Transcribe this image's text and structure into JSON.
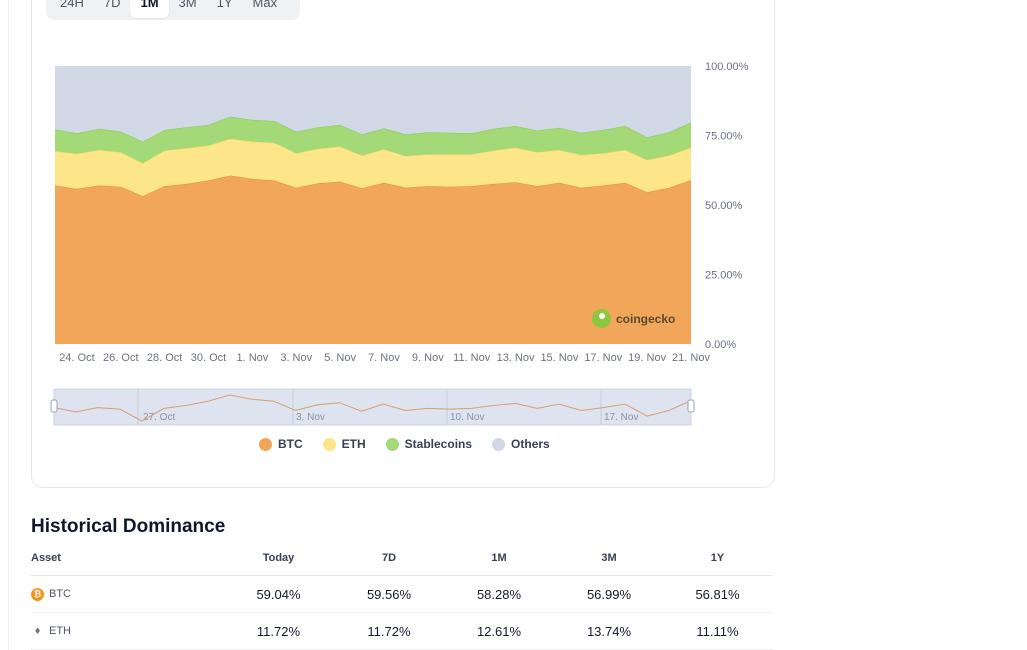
{
  "tabs": [
    {
      "label": "24H",
      "active": false
    },
    {
      "label": "7D",
      "active": false
    },
    {
      "label": "1M",
      "active": true
    },
    {
      "label": "3M",
      "active": false
    },
    {
      "label": "1Y",
      "active": false
    },
    {
      "label": "Max",
      "active": false
    }
  ],
  "watermark": "coingecko",
  "legend": [
    {
      "label": "BTC",
      "color": "#f2a65a"
    },
    {
      "label": "ETH",
      "color": "#fde68a"
    },
    {
      "label": "Stablecoins",
      "color": "#a3d977"
    },
    {
      "label": "Others",
      "color": "#d1d9e6"
    }
  ],
  "chart_data": {
    "type": "area",
    "stacked": true,
    "ylim": [
      0,
      100
    ],
    "y_ticks": [
      "100.00%",
      "75.00%",
      "50.00%",
      "25.00%",
      "0.00%"
    ],
    "x_tick_labels": [
      "24. Oct",
      "26. Oct",
      "28. Oct",
      "30. Oct",
      "1. Nov",
      "3. Nov",
      "5. Nov",
      "7. Nov",
      "9. Nov",
      "11. Nov",
      "13. Nov",
      "15. Nov",
      "17. Nov",
      "19. Nov",
      "21. Nov"
    ],
    "x": [
      "23. Oct",
      "24. Oct",
      "25. Oct",
      "26. Oct",
      "27. Oct",
      "28. Oct",
      "29. Oct",
      "30. Oct",
      "31. Oct",
      "1. Nov",
      "2. Nov",
      "3. Nov",
      "4. Nov",
      "5. Nov",
      "6. Nov",
      "7. Nov",
      "8. Nov",
      "9. Nov",
      "10. Nov",
      "11. Nov",
      "12. Nov",
      "13. Nov",
      "14. Nov",
      "15. Nov",
      "16. Nov",
      "17. Nov",
      "18. Nov",
      "19. Nov",
      "20. Nov",
      "21. Nov"
    ],
    "series": [
      {
        "name": "BTC",
        "color": "#f2a65a",
        "values": [
          57.0,
          55.8,
          57.0,
          56.6,
          53.2,
          56.8,
          57.6,
          58.8,
          60.6,
          59.4,
          58.8,
          56.2,
          57.8,
          58.4,
          56.0,
          58.0,
          56.2,
          56.8,
          56.6,
          56.8,
          57.6,
          58.2,
          56.8,
          58.0,
          56.2,
          57.0,
          58.0,
          54.6,
          56.2,
          59.0
        ]
      },
      {
        "name": "ETH",
        "color": "#fde68a",
        "values": [
          12.4,
          12.6,
          12.8,
          12.4,
          11.8,
          12.8,
          12.8,
          12.6,
          13.2,
          13.4,
          13.6,
          12.4,
          12.4,
          12.6,
          11.8,
          12.0,
          11.4,
          11.4,
          11.6,
          11.4,
          12.0,
          12.4,
          12.2,
          11.8,
          11.8,
          11.6,
          11.8,
          11.6,
          11.6,
          11.7
        ]
      },
      {
        "name": "Stablecoins",
        "color": "#a3d977",
        "values": [
          7.8,
          7.4,
          7.6,
          7.4,
          7.8,
          7.4,
          7.6,
          7.4,
          8.0,
          7.8,
          7.8,
          7.8,
          7.8,
          7.8,
          7.6,
          7.6,
          7.8,
          8.0,
          7.8,
          7.6,
          7.8,
          7.8,
          7.8,
          8.0,
          8.0,
          8.4,
          8.6,
          8.2,
          8.4,
          9.1
        ]
      },
      {
        "name": "Others",
        "color": "#d1d9e6",
        "values": [
          22.8,
          24.2,
          22.6,
          23.6,
          27.2,
          23.0,
          22.0,
          21.2,
          18.2,
          19.4,
          19.8,
          23.6,
          22.0,
          21.2,
          24.6,
          22.4,
          24.6,
          23.8,
          24.0,
          24.2,
          22.6,
          21.6,
          23.2,
          22.2,
          24.0,
          23.0,
          21.6,
          25.6,
          23.8,
          20.2
        ]
      }
    ],
    "navigator": {
      "x_labels": [
        "27. Oct",
        "3. Nov",
        "10. Nov",
        "17. Nov"
      ]
    }
  },
  "historical": {
    "title": "Historical Dominance",
    "columns": [
      "Asset",
      "Today",
      "7D",
      "1M",
      "3M",
      "1Y"
    ],
    "rows": [
      {
        "asset": "BTC",
        "icon": "bitcoin-icon",
        "values": [
          "59.04%",
          "59.56%",
          "58.28%",
          "56.99%",
          "56.81%"
        ]
      },
      {
        "asset": "ETH",
        "icon": "ethereum-icon",
        "values": [
          "11.72%",
          "11.72%",
          "12.61%",
          "13.74%",
          "11.11%"
        ]
      }
    ]
  }
}
